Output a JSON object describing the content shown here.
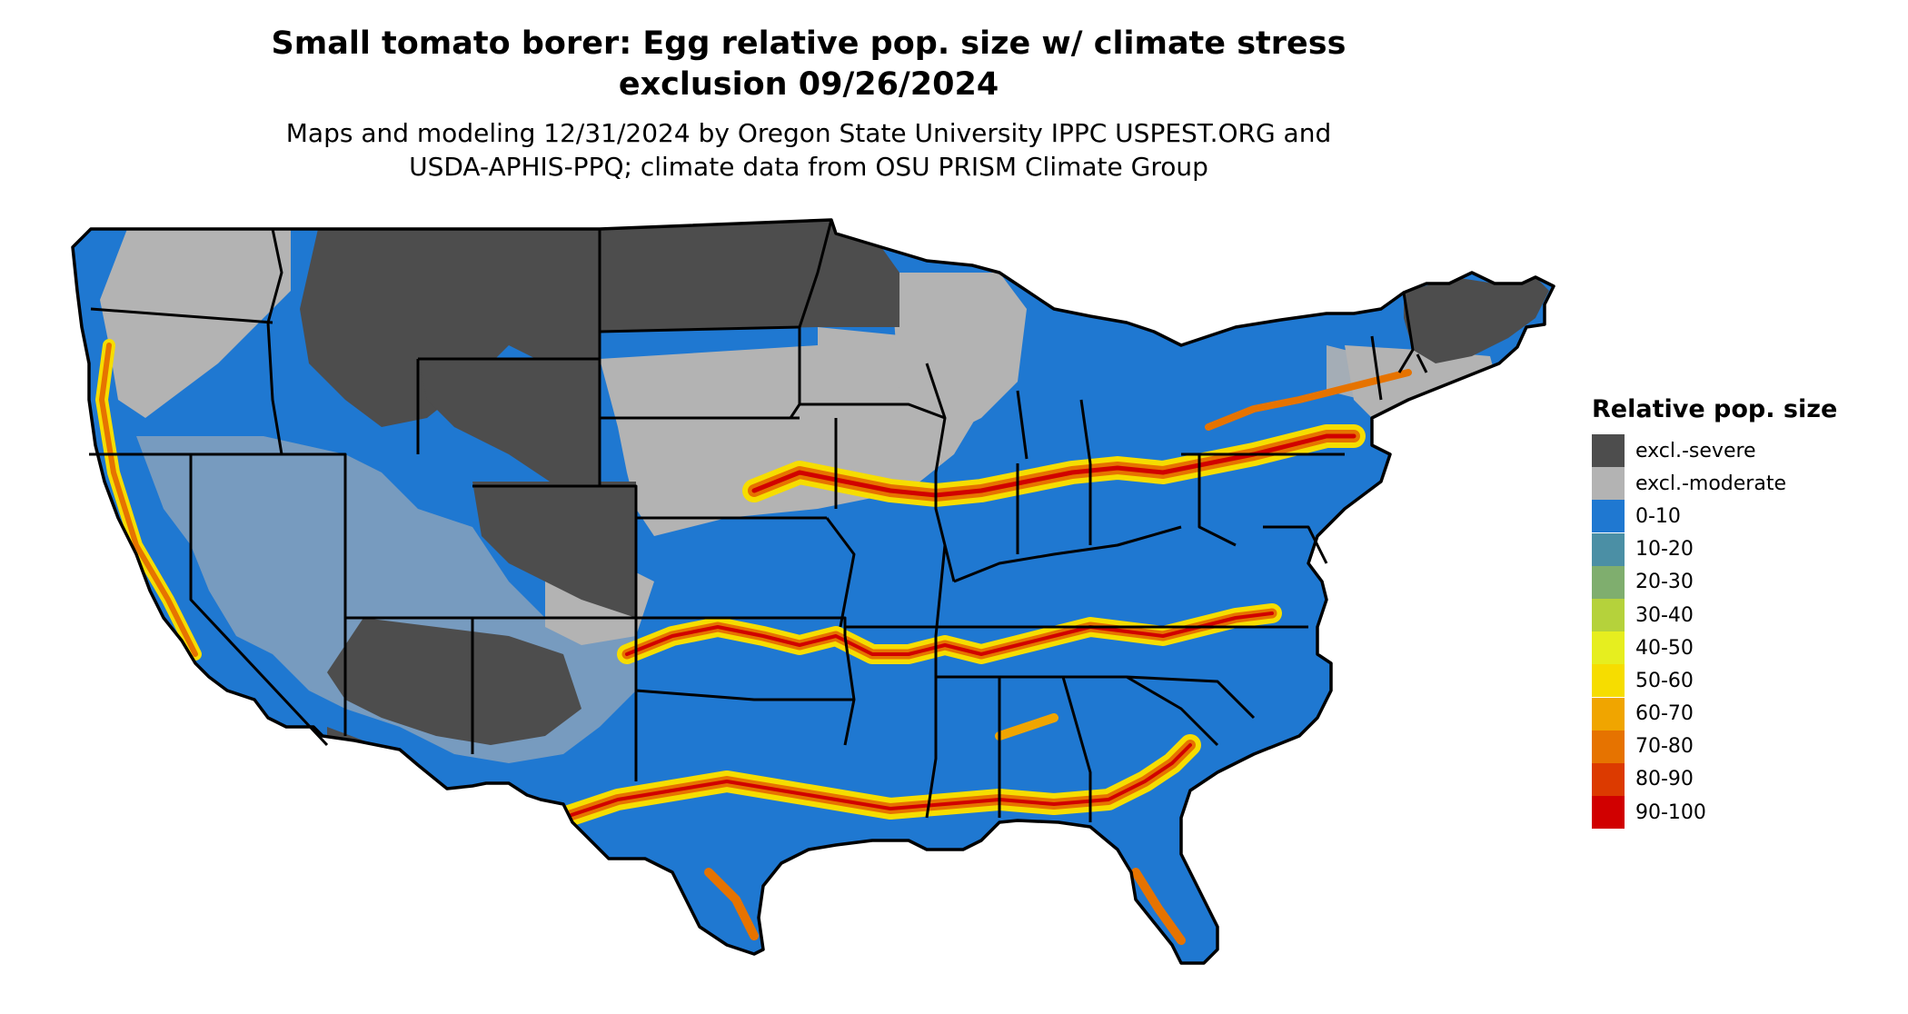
{
  "title": {
    "line1": "Small tomato borer: Egg relative pop. size w/ climate stress",
    "line2": "exclusion 09/26/2024"
  },
  "subtitle": {
    "line1": "Maps and modeling 12/31/2024 by Oregon State University IPPC USPEST.ORG and",
    "line2": "USDA-APHIS-PPQ; climate data from OSU PRISM Climate Group"
  },
  "map": {
    "region": "contiguous United States",
    "dominant_class": "0-10",
    "colors": {
      "state_border": "#000000"
    }
  },
  "legend": {
    "title": "Relative pop. size",
    "items": [
      {
        "label": "excl.-severe",
        "color": "#4d4d4d"
      },
      {
        "label": "excl.-moderate",
        "color": "#b3b3b3"
      },
      {
        "label": "0-10",
        "color": "#1f78d1"
      },
      {
        "label": "10-20",
        "color": "#4b8fa5"
      },
      {
        "label": "20-30",
        "color": "#7fae6e"
      },
      {
        "label": "30-40",
        "color": "#b5d23b"
      },
      {
        "label": "40-50",
        "color": "#e6ee1f"
      },
      {
        "label": "50-60",
        "color": "#f6dd00"
      },
      {
        "label": "60-70",
        "color": "#f0a500"
      },
      {
        "label": "70-80",
        "color": "#e67300"
      },
      {
        "label": "80-90",
        "color": "#dc3a00"
      },
      {
        "label": "90-100",
        "color": "#d10000"
      }
    ]
  }
}
